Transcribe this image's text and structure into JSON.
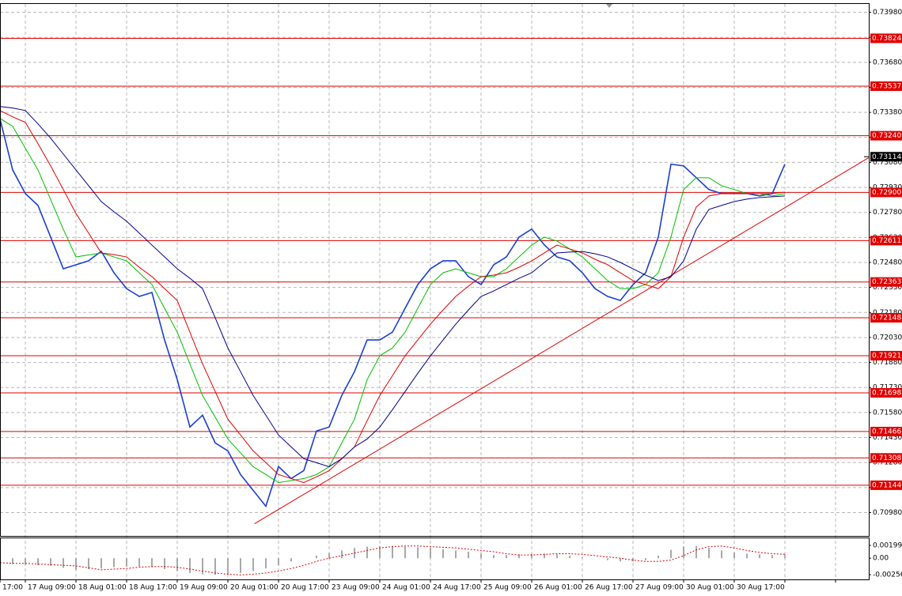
{
  "chart_data": {
    "type": "line",
    "xlim": [
      0,
      68.625
    ],
    "ylim": [
      0.7084,
      0.7403
    ],
    "grid": true,
    "yticks": [
      {
        "value": 0.7398,
        "label": "0.73980"
      },
      {
        "value": 0.7383,
        "label": "0.73830"
      },
      {
        "value": 0.7368,
        "label": "0.73680"
      },
      {
        "value": 0.7353,
        "label": "0.73530"
      },
      {
        "value": 0.7338,
        "label": "0.73380"
      },
      {
        "value": 0.7323,
        "label": "0.73230"
      },
      {
        "value": 0.7308,
        "label": "0.73080"
      },
      {
        "value": 0.7293,
        "label": "0.72930"
      },
      {
        "value": 0.7278,
        "label": "0.72780"
      },
      {
        "value": 0.7263,
        "label": "0.72630"
      },
      {
        "value": 0.7248,
        "label": "0.72480"
      },
      {
        "value": 0.7233,
        "label": "0.72330"
      },
      {
        "value": 0.7218,
        "label": "0.72180"
      },
      {
        "value": 0.7203,
        "label": "0.72030"
      },
      {
        "value": 0.7188,
        "label": "0.71880"
      },
      {
        "value": 0.7173,
        "label": "0.71730"
      },
      {
        "value": 0.7158,
        "label": "0.71580"
      },
      {
        "value": 0.7143,
        "label": "0.71430"
      },
      {
        "value": 0.7128,
        "label": "0.71280"
      },
      {
        "value": 0.7113,
        "label": "0.71130"
      },
      {
        "value": 0.7098,
        "label": "0.70980"
      }
    ],
    "xticks": [
      {
        "value": 0,
        "label": "17:00"
      },
      {
        "value": 2,
        "label": "17 Aug 09:00"
      },
      {
        "value": 6,
        "label": "18 Aug 01:00"
      },
      {
        "value": 10,
        "label": "18 Aug 17:00"
      },
      {
        "value": 14,
        "label": "19 Aug 09:00"
      },
      {
        "value": 18,
        "label": "20 Aug 01:00"
      },
      {
        "value": 22,
        "label": "20 Aug 17:00"
      },
      {
        "value": 26,
        "label": "23 Aug 09:00"
      },
      {
        "value": 30,
        "label": "24 Aug 01:00"
      },
      {
        "value": 34,
        "label": "24 Aug 17:00"
      },
      {
        "value": 38,
        "label": "25 Aug 09:00"
      },
      {
        "value": 42,
        "label": "26 Aug 01:00"
      },
      {
        "value": 46,
        "label": "26 Aug 17:00"
      },
      {
        "value": 50,
        "label": "27 Aug 09:00"
      },
      {
        "value": 54,
        "label": "30 Aug 01:00"
      },
      {
        "value": 58,
        "label": "30 Aug 17:00"
      },
      {
        "value": 62,
        "label": null
      },
      {
        "value": 66,
        "label": null
      }
    ],
    "levels": [
      {
        "value": 0.73824,
        "label": "0.73824"
      },
      {
        "value": 0.73537,
        "label": "0.73537"
      },
      {
        "value": 0.7324,
        "label": "0.73240"
      },
      {
        "value": 0.729,
        "label": "0.72900"
      },
      {
        "value": 0.72611,
        "label": "0.72611"
      },
      {
        "value": 0.72363,
        "label": "0.72363"
      },
      {
        "value": 0.72148,
        "label": "0.72148"
      },
      {
        "value": 0.71921,
        "label": "0.71921"
      },
      {
        "value": 0.71698,
        "label": "0.71698"
      },
      {
        "value": 0.71466,
        "label": "0.71466"
      },
      {
        "value": 0.71308,
        "label": "0.71308"
      },
      {
        "value": 0.71144,
        "label": "0.71144"
      }
    ],
    "level_color": "#e00000",
    "current_price": 0.73114,
    "series": [
      {
        "color": "#1a3fd0",
        "values": [
          0.7334,
          0.73035,
          0.72893,
          0.72822,
          0.72632,
          0.72442,
          0.72466,
          0.7249,
          0.72547,
          0.72418,
          0.72323,
          0.72276,
          0.723,
          0.72015,
          0.71778,
          0.71493,
          0.71564,
          0.71398,
          0.7135,
          0.71208,
          0.71113,
          0.71018,
          0.71256,
          0.71184,
          0.71232,
          0.71469,
          0.71493,
          0.71683,
          0.71825,
          0.72015,
          0.72015,
          0.72062,
          0.72205,
          0.72347,
          0.72442,
          0.7249,
          0.7249,
          0.72395,
          0.72347,
          0.72466,
          0.72513,
          0.72632,
          0.7268,
          0.72585,
          0.72513,
          0.7249,
          0.72418,
          0.72323,
          0.72276,
          0.72252,
          0.72347,
          0.72418,
          0.72632,
          0.73069,
          0.73059,
          0.72988,
          0.72917,
          0.72893,
          0.72893,
          0.72893,
          0.72879,
          0.72893,
          0.73069
        ]
      },
      {
        "color": "#00c000",
        "values": [
          0.73344,
          0.73296,
          0.73165,
          0.73035,
          0.72857,
          0.72679,
          0.72513,
          0.72525,
          0.72537,
          0.72513,
          0.72489,
          0.72418,
          0.72347,
          0.72205,
          0.72062,
          0.71872,
          0.71682,
          0.71552,
          0.71421,
          0.71338,
          0.71255,
          0.71208,
          0.7116,
          0.71172,
          0.71184,
          0.71208,
          0.71255,
          0.71398,
          0.7154,
          0.71777,
          0.7192,
          0.71967,
          0.72062,
          0.72205,
          0.72347,
          0.72418,
          0.72442,
          0.72418,
          0.72395,
          0.72395,
          0.72442,
          0.72513,
          0.72584,
          0.72632,
          0.72608,
          0.72561,
          0.72513,
          0.72442,
          0.72371,
          0.72323,
          0.72323,
          0.72347,
          0.72418,
          0.72632,
          0.72917,
          0.72988,
          0.72988,
          0.7294,
          0.72917,
          0.72893,
          0.72893,
          0.72879,
          0.72893
        ]
      },
      {
        "color": "#e00000",
        "values": [
          0.73391,
          0.73353,
          0.7332,
          0.73192,
          0.73059,
          0.72917,
          0.72774,
          0.72656,
          0.72537,
          0.72527,
          0.72513,
          0.72451,
          0.72395,
          0.72323,
          0.72252,
          0.72062,
          0.71872,
          0.71706,
          0.7154,
          0.71445,
          0.7135,
          0.71279,
          0.71208,
          0.71184,
          0.7116,
          0.71194,
          0.71231,
          0.71303,
          0.71374,
          0.71531,
          0.71682,
          0.71801,
          0.7192,
          0.72015,
          0.7211,
          0.72195,
          0.72276,
          0.72338,
          0.72395,
          0.72404,
          0.72418,
          0.72451,
          0.72489,
          0.72537,
          0.72584,
          0.72561,
          0.72537,
          0.72499,
          0.72466,
          0.72418,
          0.72371,
          0.72347,
          0.72323,
          0.72395,
          0.72632,
          0.72812,
          0.72879,
          0.72893,
          0.72893,
          0.72893,
          0.72893,
          0.72893,
          0.72902
        ]
      },
      {
        "color": "#00008b",
        "values": [
          0.73415,
          0.73406,
          0.73391,
          0.73311,
          0.73225,
          0.7313,
          0.73035,
          0.7294,
          0.72845,
          0.72784,
          0.72727,
          0.72656,
          0.72584,
          0.72513,
          0.72442,
          0.72385,
          0.72323,
          0.72148,
          0.71967,
          0.71825,
          0.71682,
          0.71564,
          0.71445,
          0.71374,
          0.71303,
          0.71279,
          0.71255,
          0.71303,
          0.71374,
          0.71421,
          0.71493,
          0.71597,
          0.71706,
          0.71815,
          0.7192,
          0.72015,
          0.7211,
          0.72195,
          0.72276,
          0.72309,
          0.72347,
          0.72385,
          0.72418,
          0.7248,
          0.72537,
          0.72542,
          0.72546,
          0.72532,
          0.72513,
          0.7248,
          0.72442,
          0.72404,
          0.72371,
          0.72394,
          0.72489,
          0.72679,
          0.72798,
          0.72822,
          0.72845,
          0.7286,
          0.72869,
          0.72874,
          0.72879
        ]
      }
    ],
    "trendline": {
      "x": [
        20.1,
        68.6
      ],
      "values": [
        0.70913,
        0.73107
      ],
      "color": "#e00000"
    },
    "oscillator": {
      "type": "bar",
      "ylim": [
        -0.0033,
        0.0031
      ],
      "yticks": [
        0.001994,
        {
          "value": 0,
          "label": "0.00"
        },
        -0.00256
      ],
      "color": "#a8a8a8",
      "values": [
        -0.0008,
        -0.0009,
        -0.001,
        -0.0011,
        -0.0012,
        -0.0015,
        -0.0018,
        -0.0017,
        -0.0016,
        -0.0014,
        -0.0013,
        -0.0013,
        -0.0014,
        -0.0017,
        -0.002,
        -0.0023,
        -0.0025,
        -0.0026,
        -0.0025,
        -0.0023,
        -0.002,
        -0.0016,
        -0.0011,
        -0.0005,
        0,
        0.0004,
        0.0008,
        0.0012,
        0.0016,
        0.0018,
        0.0019,
        0.0019,
        0.0018,
        0.0017,
        0.0016,
        0.0014,
        0.0012,
        0.001,
        0.0007,
        0.0005,
        0.0005,
        0.0006,
        0.0007,
        0.0007,
        0.0006,
        0.0004,
        0.0002,
        0,
        -0.0003,
        -0.0005,
        -0.0005,
        -0.0003,
        0.0004,
        0.0013,
        0.0018,
        0.0019,
        0.0016,
        0.0012,
        0.0009,
        0.0007,
        0.0006,
        0.0005,
        0.0005
      ],
      "signal": {
        "color": "#e00000",
        "values": [
          -0.0007,
          -0.0008,
          -0.0008,
          -0.0009,
          -0.001,
          -0.0011,
          -0.0012,
          -0.0015,
          -0.0018,
          -0.0017,
          -0.0016,
          -0.0014,
          -0.0013,
          -0.0013,
          -0.0014,
          -0.0017,
          -0.002,
          -0.0023,
          -0.0025,
          -0.0026,
          -0.0025,
          -0.0023,
          -0.002,
          -0.0016,
          -0.0011,
          -0.0005,
          0,
          0.0004,
          0.0008,
          0.0012,
          0.0016,
          0.0018,
          0.0019,
          0.0019,
          0.0018,
          0.0017,
          0.0016,
          0.0014,
          0.0012,
          0.001,
          0.0007,
          0.0005,
          0.0005,
          0.0006,
          0.0007,
          0.0007,
          0.0006,
          0.0004,
          0.0002,
          0,
          -0.0003,
          -0.0005,
          -0.0005,
          -0.0003,
          0.0004,
          0.0013,
          0.0018,
          0.0019,
          0.0016,
          0.0012,
          0.0009,
          0.0007,
          0.0006
        ]
      }
    }
  }
}
